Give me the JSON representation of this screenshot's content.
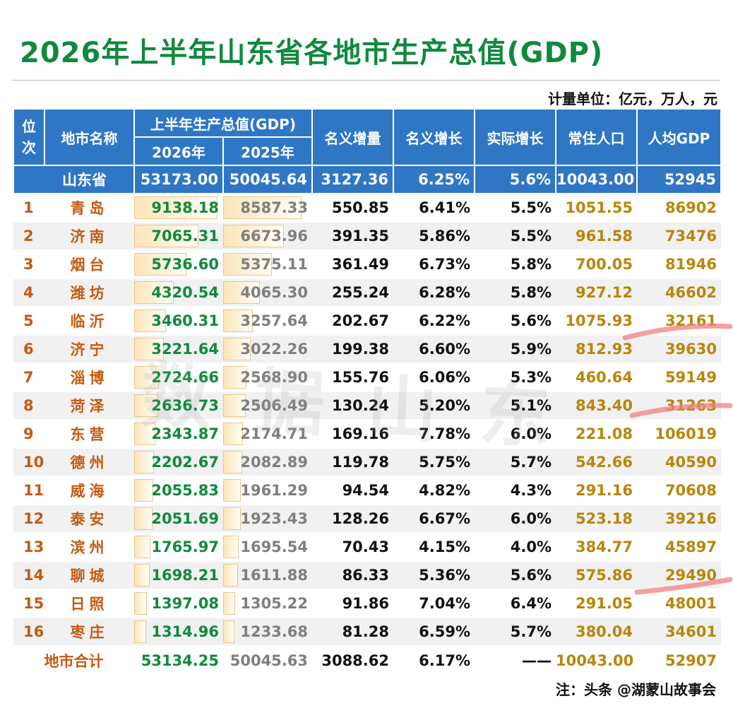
{
  "title": "2026年上半年山东省各地市生产总值(GDP)",
  "unit": "计量单位：亿元，万人，元",
  "headers": {
    "rank": "位次",
    "city": "地市名称",
    "gdp_group": "上半年生产总值(GDP)",
    "y2026": "2026年",
    "y2025": "2025年",
    "nominal_inc": "名义增量",
    "nominal_growth": "名义增长",
    "real_growth": "实际增长",
    "population": "常住人口",
    "per_capita": "人均GDP"
  },
  "province": {
    "name": "山东省",
    "gdp2026": "53173.00",
    "gdp2025": "50045.64",
    "nominal_inc": "3127.36",
    "nominal_growth": "6.25%",
    "real_growth": "5.6%",
    "population": "10043.00",
    "per_capita": "52945"
  },
  "rows": [
    {
      "rank": "1",
      "city": "青岛",
      "gdp2026": "9138.18",
      "gdp2025": "8587.33",
      "nominal_inc": "550.85",
      "nominal_growth": "6.41%",
      "real_growth": "5.5%",
      "population": "1051.55",
      "per_capita": "86902"
    },
    {
      "rank": "2",
      "city": "济南",
      "gdp2026": "7065.31",
      "gdp2025": "6673.96",
      "nominal_inc": "391.35",
      "nominal_growth": "5.86%",
      "real_growth": "5.5%",
      "population": "961.58",
      "per_capita": "73476"
    },
    {
      "rank": "3",
      "city": "烟台",
      "gdp2026": "5736.60",
      "gdp2025": "5375.11",
      "nominal_inc": "361.49",
      "nominal_growth": "6.73%",
      "real_growth": "5.8%",
      "population": "700.05",
      "per_capita": "81946"
    },
    {
      "rank": "4",
      "city": "潍坊",
      "gdp2026": "4320.54",
      "gdp2025": "4065.30",
      "nominal_inc": "255.24",
      "nominal_growth": "6.28%",
      "real_growth": "5.8%",
      "population": "927.12",
      "per_capita": "46602"
    },
    {
      "rank": "5",
      "city": "临沂",
      "gdp2026": "3460.31",
      "gdp2025": "3257.64",
      "nominal_inc": "202.67",
      "nominal_growth": "6.22%",
      "real_growth": "5.6%",
      "population": "1075.93",
      "per_capita": "32161"
    },
    {
      "rank": "6",
      "city": "济宁",
      "gdp2026": "3221.64",
      "gdp2025": "3022.26",
      "nominal_inc": "199.38",
      "nominal_growth": "6.60%",
      "real_growth": "5.9%",
      "population": "812.93",
      "per_capita": "39630"
    },
    {
      "rank": "7",
      "city": "淄博",
      "gdp2026": "2724.66",
      "gdp2025": "2568.90",
      "nominal_inc": "155.76",
      "nominal_growth": "6.06%",
      "real_growth": "5.3%",
      "population": "460.64",
      "per_capita": "59149"
    },
    {
      "rank": "8",
      "city": "菏泽",
      "gdp2026": "2636.73",
      "gdp2025": "2506.49",
      "nominal_inc": "130.24",
      "nominal_growth": "5.20%",
      "real_growth": "5.1%",
      "population": "843.40",
      "per_capita": "31263"
    },
    {
      "rank": "9",
      "city": "东营",
      "gdp2026": "2343.87",
      "gdp2025": "2174.71",
      "nominal_inc": "169.16",
      "nominal_growth": "7.78%",
      "real_growth": "6.0%",
      "population": "221.08",
      "per_capita": "106019"
    },
    {
      "rank": "10",
      "city": "德州",
      "gdp2026": "2202.67",
      "gdp2025": "2082.89",
      "nominal_inc": "119.78",
      "nominal_growth": "5.75%",
      "real_growth": "5.7%",
      "population": "542.66",
      "per_capita": "40590"
    },
    {
      "rank": "11",
      "city": "威海",
      "gdp2026": "2055.83",
      "gdp2025": "1961.29",
      "nominal_inc": "94.54",
      "nominal_growth": "4.82%",
      "real_growth": "4.3%",
      "population": "291.16",
      "per_capita": "70608"
    },
    {
      "rank": "12",
      "city": "泰安",
      "gdp2026": "2051.69",
      "gdp2025": "1923.43",
      "nominal_inc": "128.26",
      "nominal_growth": "6.67%",
      "real_growth": "6.0%",
      "population": "523.18",
      "per_capita": "39216"
    },
    {
      "rank": "13",
      "city": "滨州",
      "gdp2026": "1765.97",
      "gdp2025": "1695.54",
      "nominal_inc": "70.43",
      "nominal_growth": "4.15%",
      "real_growth": "4.0%",
      "population": "384.77",
      "per_capita": "45897"
    },
    {
      "rank": "14",
      "city": "聊城",
      "gdp2026": "1698.21",
      "gdp2025": "1611.88",
      "nominal_inc": "86.33",
      "nominal_growth": "5.36%",
      "real_growth": "5.6%",
      "population": "575.86",
      "per_capita": "29490"
    },
    {
      "rank": "15",
      "city": "日照",
      "gdp2026": "1397.08",
      "gdp2025": "1305.22",
      "nominal_inc": "91.86",
      "nominal_growth": "7.04%",
      "real_growth": "6.4%",
      "population": "291.05",
      "per_capita": "48001"
    },
    {
      "rank": "16",
      "city": "枣庄",
      "gdp2026": "1314.96",
      "gdp2025": "1233.68",
      "nominal_inc": "81.28",
      "nominal_growth": "6.59%",
      "real_growth": "5.7%",
      "population": "380.04",
      "per_capita": "34601"
    }
  ],
  "total": {
    "label": "地市合计",
    "gdp2026": "53134.25",
    "gdp2025": "50045.63",
    "nominal_inc": "3088.62",
    "nominal_growth": "6.17%",
    "real_growth": "——",
    "population": "10043.00",
    "per_capita": "52907"
  },
  "watermark": "数据山东",
  "note": "注：头条 @湖蒙山故事会",
  "colors": {
    "title": "#10893e",
    "header_bg": "#2f77c5",
    "city_text": "#c55a11",
    "gdp2026_text": "#10893e",
    "gdp2025_text": "#7f7f7f",
    "gold_text": "#b8860b",
    "highlight_marker": "#f08080"
  },
  "data_bars_max": 9138.18
}
